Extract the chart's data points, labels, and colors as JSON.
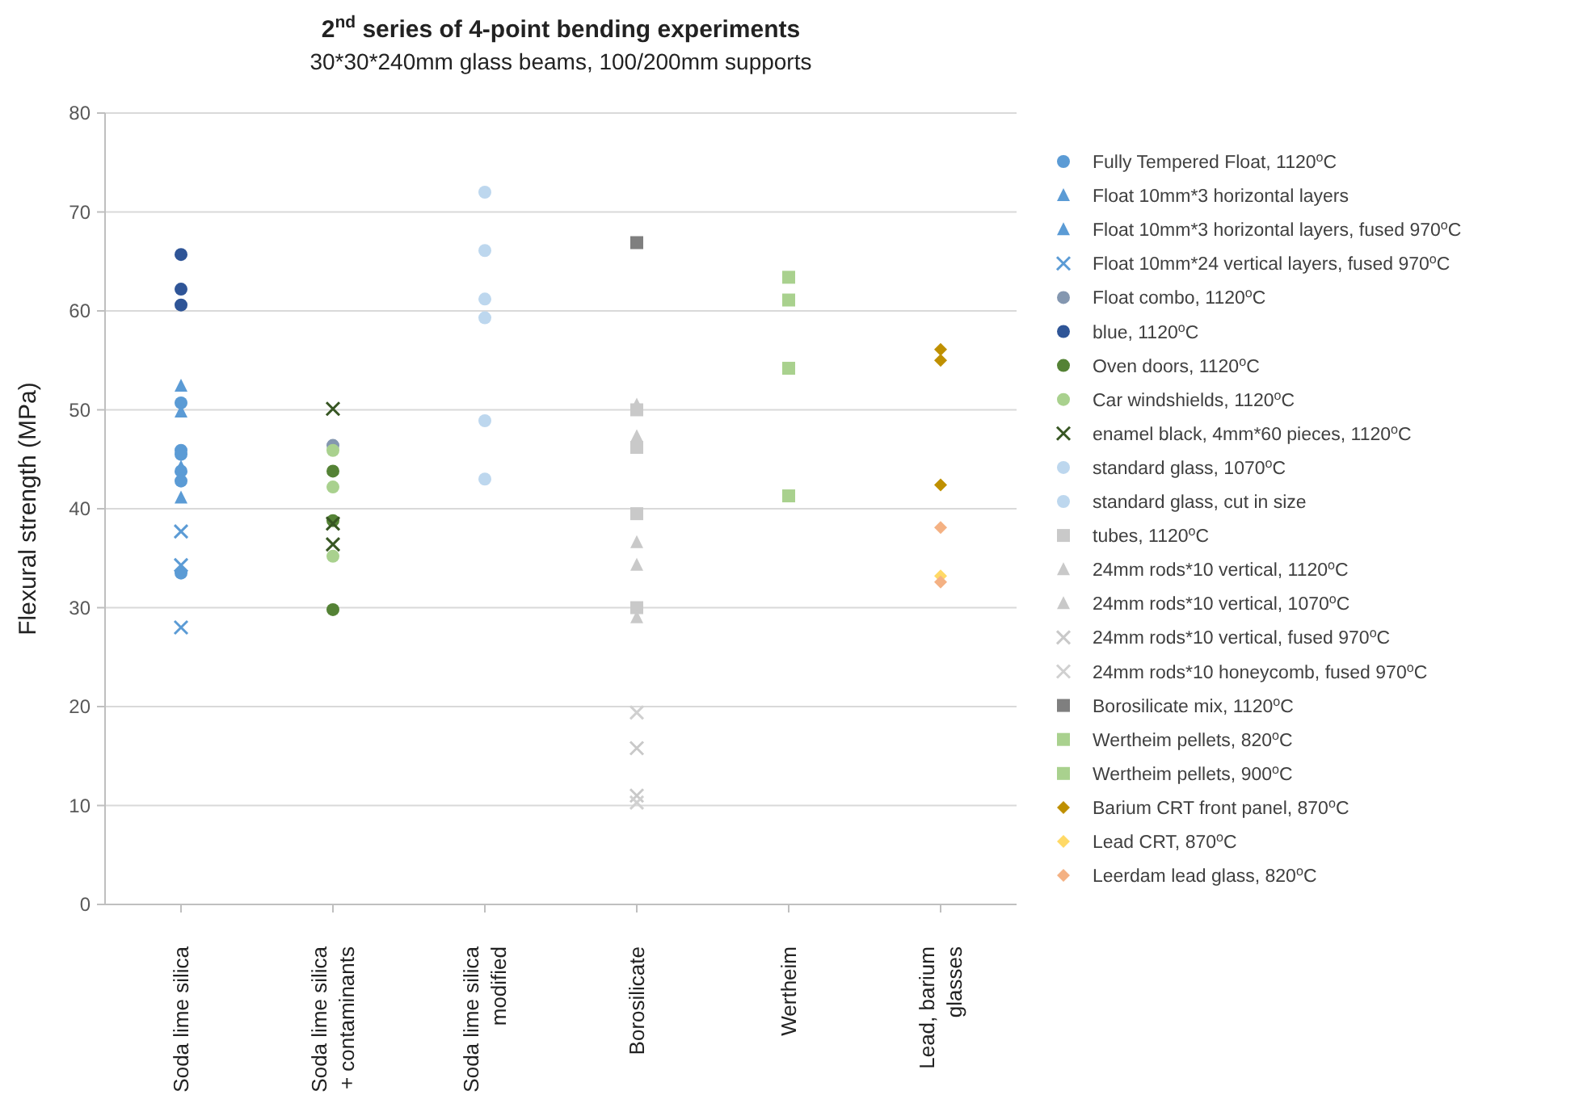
{
  "chart_data": {
    "type": "scatter",
    "title": "2$^{nd}$ series of 4-point bending experiments",
    "subtitle": "30*30*240mm glass beams, 100/200mm supports",
    "ylabel": "Flexural strength (MPa)",
    "categories": [
      "Soda lime silica",
      "Soda lime silica\n+ contaminants",
      "Soda lime silica\nmodified",
      "Borosilicate",
      "Wertheim",
      "Lead, barium\nglasses"
    ],
    "ylim": [
      0,
      80
    ],
    "yticks": [
      0,
      10,
      20,
      30,
      40,
      50,
      60,
      70,
      80
    ],
    "grid": "y",
    "legend": "right",
    "series": [
      {
        "name": "Fully Tempered Float, 1120$^{o}$C",
        "color": "#5b9bd5",
        "marker": "circle",
        "x": [
          "Soda lime silica",
          "Soda lime silica",
          "Soda lime silica",
          "Soda lime silica",
          "Soda lime silica",
          "Soda lime silica"
        ],
        "values": [
          50.7,
          45.9,
          45.5,
          43.8,
          42.8,
          33.5
        ]
      },
      {
        "name": "Float 10mm*3 horizontal layers",
        "color": "#5b9bd5",
        "marker": "triangle",
        "x": [
          "Soda lime silica",
          "Soda lime silica"
        ],
        "values": [
          52.4,
          44.2
        ]
      },
      {
        "name": "Float 10mm*3 horizontal layers, fused 970$^{o}$C",
        "color": "#5b9bd5",
        "marker": "triangle",
        "x": [
          "Soda lime silica",
          "Soda lime silica"
        ],
        "values": [
          49.8,
          41.1
        ]
      },
      {
        "name": "Float 10mm*24 vertical layers, fused 970$^{o}$C",
        "color": "#5b9bd5",
        "marker": "cross",
        "x": [
          "Soda lime silica",
          "Soda lime silica",
          "Soda lime silica"
        ],
        "values": [
          37.7,
          34.3,
          28
        ]
      },
      {
        "name": "Float combo, 1120$^{o}$C",
        "color": "#8497b0",
        "marker": "circle",
        "x": [
          "Soda lime silica\n+ contaminants"
        ],
        "values": [
          46.4
        ]
      },
      {
        "name": "blue, 1120$^{o}$C",
        "color": "#2f5597",
        "marker": "circle",
        "x": [
          "Soda lime silica",
          "Soda lime silica",
          "Soda lime silica"
        ],
        "values": [
          65.7,
          62.2,
          60.6
        ]
      },
      {
        "name": "Oven doors, 1120$^{o}$C",
        "color": "#548235",
        "marker": "circle",
        "x": [
          "Soda lime silica\n+ contaminants",
          "Soda lime silica\n+ contaminants",
          "Soda lime silica\n+ contaminants"
        ],
        "values": [
          43.8,
          38.8,
          29.8
        ]
      },
      {
        "name": "Car windshields, 1120$^{o}$C",
        "color": "#a9d18e",
        "marker": "circle",
        "x": [
          "Soda lime silica\n+ contaminants",
          "Soda lime silica\n+ contaminants",
          "Soda lime silica\n+ contaminants"
        ],
        "values": [
          45.9,
          42.2,
          35.2
        ]
      },
      {
        "name": "enamel black, 4mm*60 pieces, 1120$^{o}$C",
        "color": "#375623",
        "marker": "cross",
        "x": [
          "Soda lime silica\n+ contaminants",
          "Soda lime silica\n+ contaminants",
          "Soda lime silica\n+ contaminants"
        ],
        "values": [
          50.1,
          38.5,
          36.4
        ]
      },
      {
        "name": "standard glass, 1070$^{o}$C",
        "color": "#bdd7ee",
        "marker": "circle",
        "x": [
          "Soda lime silica\nmodified",
          "Soda lime silica\nmodified",
          "Soda lime silica\nmodified"
        ],
        "values": [
          72,
          66.1,
          61.2
        ]
      },
      {
        "name": "standard glass, cut in size",
        "color": "#bdd7ee",
        "marker": "circle",
        "x": [
          "Soda lime silica\nmodified",
          "Soda lime silica\nmodified",
          "Soda lime silica\nmodified"
        ],
        "values": [
          59.3,
          48.9,
          43
        ]
      },
      {
        "name": "tubes, 1120$^{o}$C",
        "color": "#c9c9c9",
        "marker": "square",
        "x": [
          "Borosilicate",
          "Borosilicate",
          "Borosilicate",
          "Borosilicate"
        ],
        "values": [
          50,
          46.2,
          39.5,
          30
        ]
      },
      {
        "name": "24mm rods*10 vertical, 1120$^{o}$C",
        "color": "#c9c9c9",
        "marker": "triangle",
        "x": [
          "Borosilicate",
          "Borosilicate",
          "Borosilicate"
        ],
        "values": [
          50.5,
          47.3,
          34.3
        ]
      },
      {
        "name": "24mm rods*10 vertical, 1070$^{o}$C",
        "color": "#c9c9c9",
        "marker": "triangle",
        "x": [
          "Borosilicate",
          "Borosilicate"
        ],
        "values": [
          36.6,
          29
        ]
      },
      {
        "name": "24mm rods*10 vertical, fused 970$^{o}$C",
        "color": "#c9c9c9",
        "marker": "cross",
        "x": [
          "Borosilicate",
          "Borosilicate"
        ],
        "values": [
          15.8,
          11
        ]
      },
      {
        "name": "24mm rods*10 honeycomb, fused 970$^{o}$C",
        "color": "#d0d0d0",
        "marker": "cross",
        "x": [
          "Borosilicate",
          "Borosilicate"
        ],
        "values": [
          19.4,
          10.3
        ]
      },
      {
        "name": "Borosilicate mix, 1120$^{o}$C",
        "color": "#7f7f7f",
        "marker": "square",
        "x": [
          "Borosilicate"
        ],
        "values": [
          66.9
        ]
      },
      {
        "name": "Wertheim pellets, 820$^{o}$C",
        "color": "#a9d18e",
        "marker": "square",
        "x": [
          "Wertheim",
          "Wertheim",
          "Wertheim"
        ],
        "values": [
          61.1,
          54.2,
          41.3
        ]
      },
      {
        "name": "Wertheim pellets, 900$^{o}$C",
        "color": "#a9d18e",
        "marker": "square",
        "x": [
          "Wertheim"
        ],
        "values": [
          63.4
        ]
      },
      {
        "name": "Barium CRT front panel, 870$^{o}$C",
        "color": "#bf9000",
        "marker": "diamond",
        "x": [
          "Lead, barium\nglasses",
          "Lead, barium\nglasses",
          "Lead, barium\nglasses"
        ],
        "values": [
          56.1,
          55,
          42.4
        ]
      },
      {
        "name": "Lead CRT, 870$^{o}$C",
        "color": "#ffd966",
        "marker": "diamond",
        "x": [
          "Lead, barium\nglasses"
        ],
        "values": [
          33.2
        ]
      },
      {
        "name": "Leerdam lead glass, 820$^{o}$C",
        "color": "#f4b183",
        "marker": "diamond",
        "x": [
          "Lead, barium\nglasses",
          "Lead, barium\nglasses"
        ],
        "values": [
          38.1,
          32.6
        ]
      }
    ]
  }
}
